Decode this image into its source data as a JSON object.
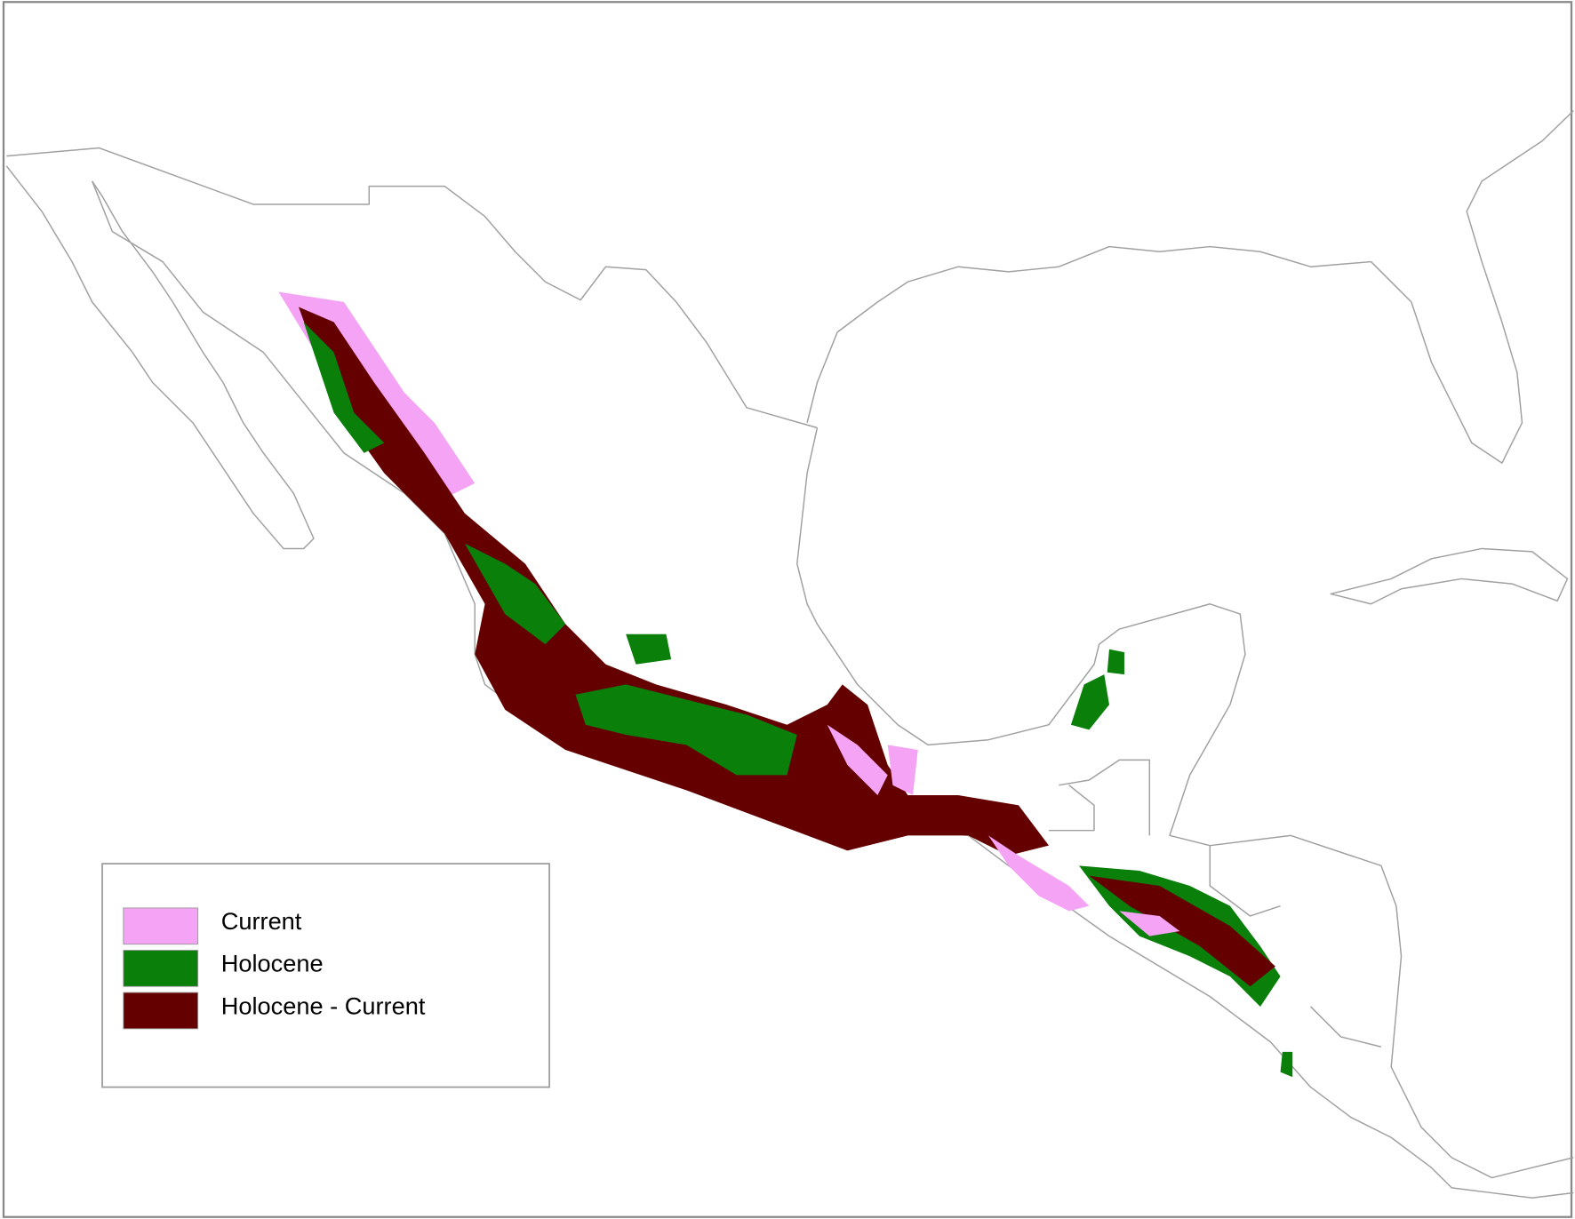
{
  "legend": {
    "items": [
      {
        "label": "Current",
        "color": "#f5a3f5"
      },
      {
        "label": "Holocene",
        "color": "#0a800a"
      },
      {
        "label": "Holocene - Current",
        "color": "#650000"
      }
    ]
  }
}
